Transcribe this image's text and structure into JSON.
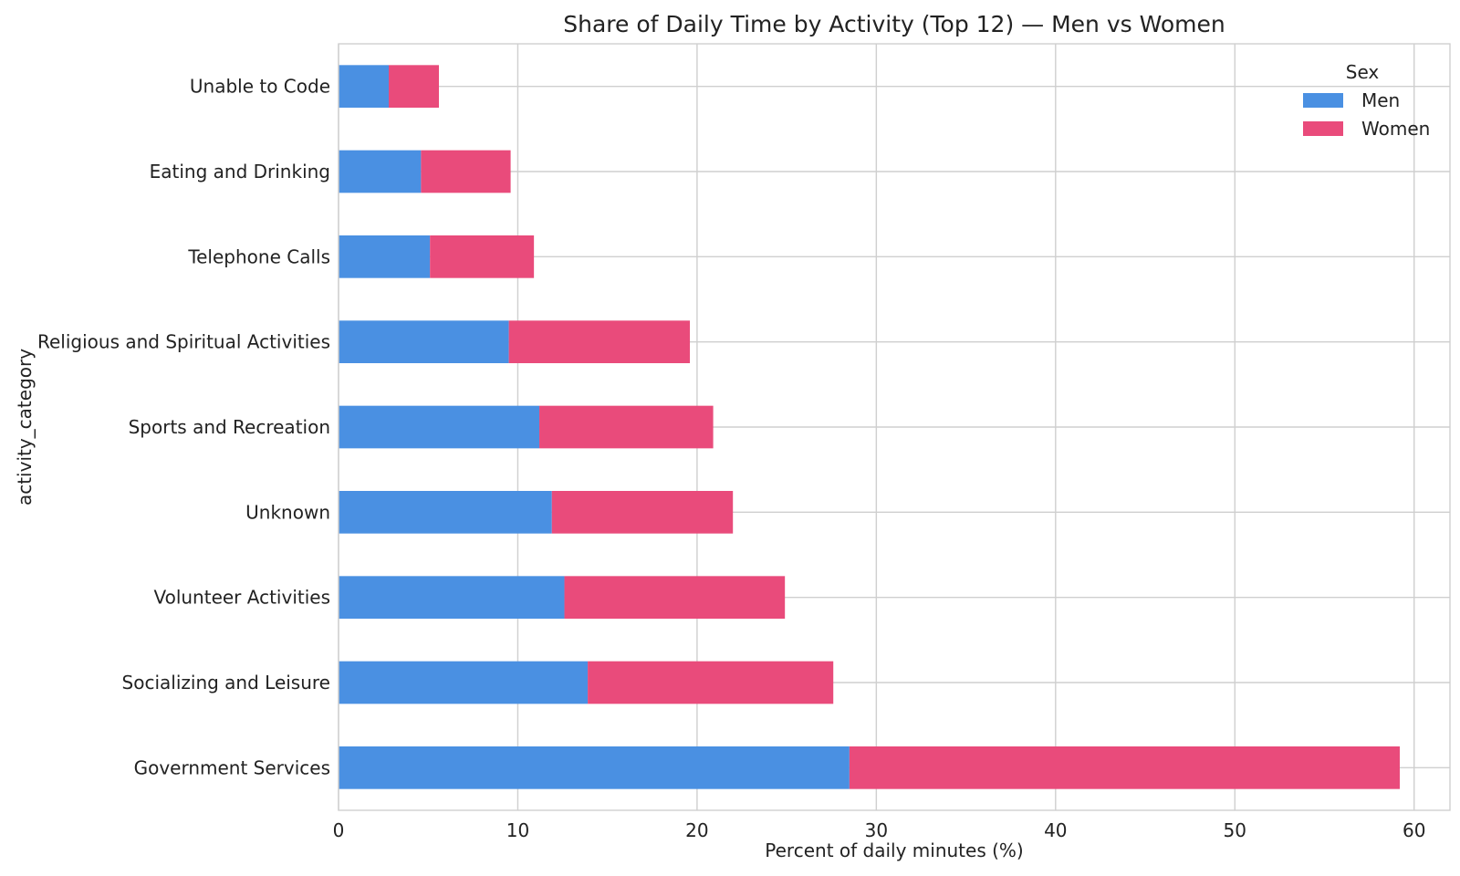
{
  "chart_data": {
    "type": "bar",
    "orientation": "horizontal",
    "stacked": true,
    "title": "Share of Daily Time by Activity (Top 12) — Men vs Women",
    "xlabel": "Percent of daily minutes (%)",
    "ylabel": "activity_category",
    "xlim": [
      0,
      62
    ],
    "xticks": [
      0,
      10,
      20,
      30,
      40,
      50,
      60
    ],
    "grid": true,
    "legend": {
      "title": "Sex",
      "placement": "top-right"
    },
    "categories": [
      "Government Services",
      "Socializing and Leisure",
      "Volunteer Activities",
      "Unknown",
      "Sports and Recreation",
      "Religious and Spiritual Activities",
      "Telephone Calls",
      "Eating and Drinking",
      "Unable to Code"
    ],
    "series": [
      {
        "name": "Men",
        "color": "#4a90e2",
        "values": [
          28.5,
          13.9,
          12.6,
          11.9,
          11.2,
          9.5,
          5.1,
          4.6,
          2.8
        ]
      },
      {
        "name": "Women",
        "color": "#e94b7b",
        "values": [
          30.7,
          13.7,
          12.3,
          10.1,
          9.7,
          10.1,
          5.8,
          5.0,
          2.8
        ]
      }
    ]
  }
}
